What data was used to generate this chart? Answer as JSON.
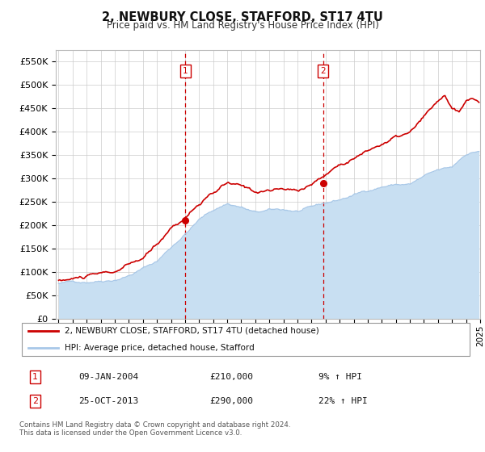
{
  "title": "2, NEWBURY CLOSE, STAFFORD, ST17 4TU",
  "subtitle": "Price paid vs. HM Land Registry's House Price Index (HPI)",
  "background_color": "#ffffff",
  "plot_bg_color": "#ffffff",
  "grid_color": "#cccccc",
  "ylim": [
    0,
    575000
  ],
  "yticks": [
    0,
    50000,
    100000,
    150000,
    200000,
    250000,
    300000,
    350000,
    400000,
    450000,
    500000,
    550000
  ],
  "ytick_labels": [
    "£0",
    "£50K",
    "£100K",
    "£150K",
    "£200K",
    "£250K",
    "£300K",
    "£350K",
    "£400K",
    "£450K",
    "£500K",
    "£550K"
  ],
  "hpi_color": "#a8c8e8",
  "hpi_fill_color": "#c8dff2",
  "price_color": "#cc0000",
  "sale1_date_num": 2004.03,
  "sale1_price": 210000,
  "sale1_label": "1",
  "sale2_date_num": 2013.82,
  "sale2_price": 290000,
  "sale2_label": "2",
  "legend_entry1": "2, NEWBURY CLOSE, STAFFORD, ST17 4TU (detached house)",
  "legend_entry2": "HPI: Average price, detached house, Stafford",
  "table_row1": [
    "1",
    "09-JAN-2004",
    "£210,000",
    "9% ↑ HPI"
  ],
  "table_row2": [
    "2",
    "25-OCT-2013",
    "£290,000",
    "22% ↑ HPI"
  ],
  "footnote": "Contains HM Land Registry data © Crown copyright and database right 2024.\nThis data is licensed under the Open Government Licence v3.0.",
  "xstart": 1995,
  "xend": 2025
}
